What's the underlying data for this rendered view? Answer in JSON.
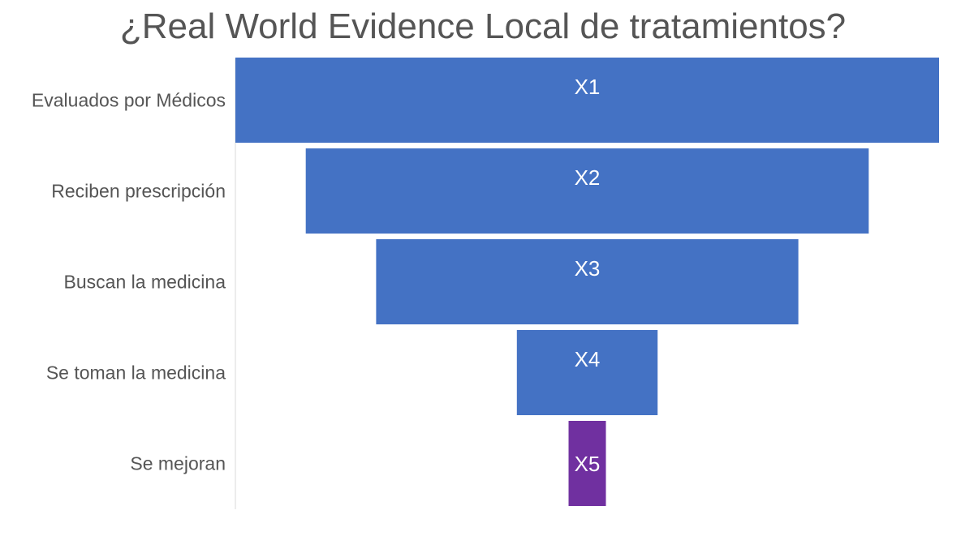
{
  "chart_data": {
    "type": "bar",
    "subtype": "funnel",
    "title": "¿Real World Evidence Local de tratamientos?",
    "categories": [
      "Evaluados por Médicos",
      "Reciben prescripción",
      "Buscan la medicina",
      "Se toman la medicina",
      "Se mejoran"
    ],
    "data_labels": [
      "X1",
      "X2",
      "X3",
      "X4",
      "X5"
    ],
    "values": [
      100,
      80,
      60,
      20,
      5.3
    ],
    "colors": [
      "#4472c4",
      "#4472c4",
      "#4472c4",
      "#4472c4",
      "#7030a0"
    ],
    "xlim": [
      0,
      100
    ],
    "grid": false,
    "legend": "none"
  }
}
